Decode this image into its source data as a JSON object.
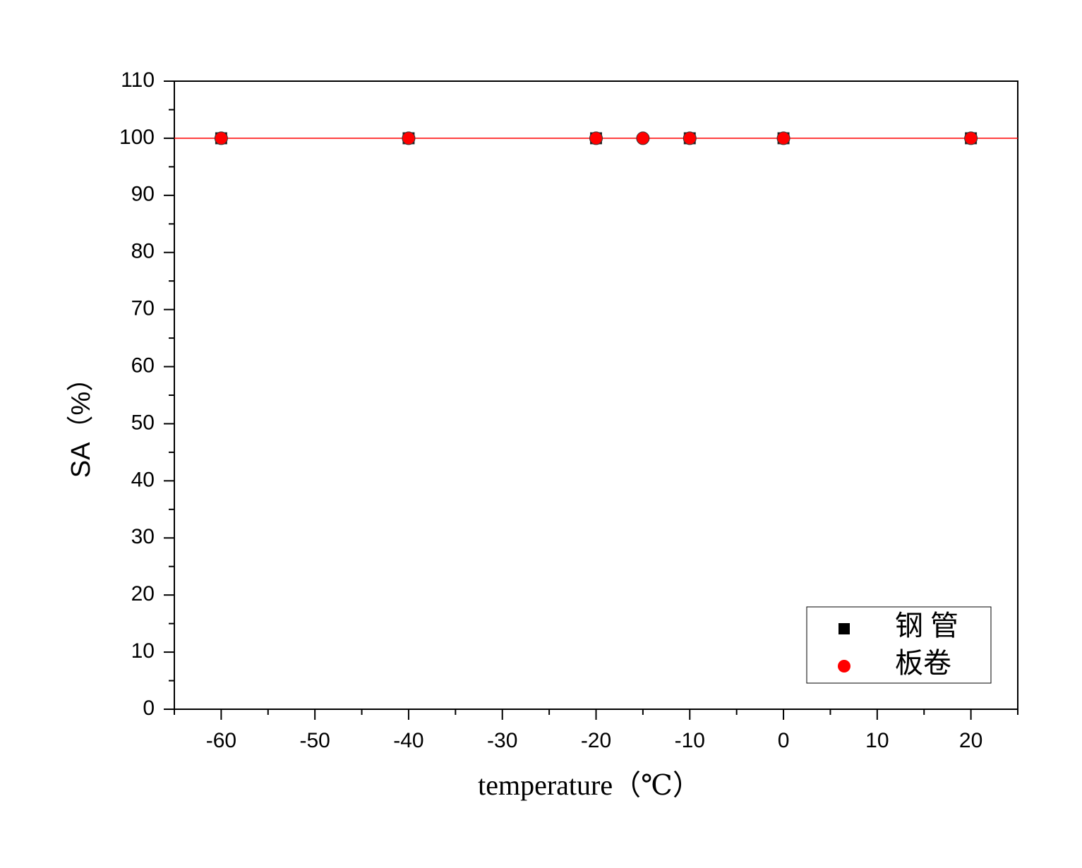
{
  "chart_data": {
    "type": "scatter",
    "x_label": "temperature（℃）",
    "y_label": "SA（%）",
    "xlim": [
      -65,
      25
    ],
    "xticks": [
      -60,
      -50,
      -40,
      -30,
      -20,
      -10,
      0,
      10,
      20
    ],
    "xminorticks": [
      -65,
      -55,
      -45,
      -35,
      -25,
      -15,
      -5,
      5,
      15,
      25
    ],
    "ylim": [
      0,
      110
    ],
    "yticks": [
      0,
      10,
      20,
      30,
      40,
      50,
      60,
      70,
      80,
      90,
      100,
      110
    ],
    "yminorticks": [
      5,
      15,
      25,
      35,
      45,
      55,
      65,
      75,
      85,
      95,
      105
    ],
    "reference_line": {
      "value": 100,
      "color": "#ff0000"
    },
    "legend": "bottom-right",
    "series": [
      {
        "name": "钢 管",
        "color": "#000000",
        "marker": "square",
        "x": [
          -60,
          -40,
          -20,
          -10,
          0,
          20
        ],
        "values": [
          100,
          100,
          100,
          100,
          100,
          100
        ]
      },
      {
        "name": "板卷",
        "color": "#ff0000",
        "marker": "circle",
        "x": [
          -60,
          -40,
          -20,
          -15,
          -10,
          0,
          20
        ],
        "values": [
          100,
          100,
          100,
          100,
          100,
          100,
          100
        ]
      }
    ]
  }
}
